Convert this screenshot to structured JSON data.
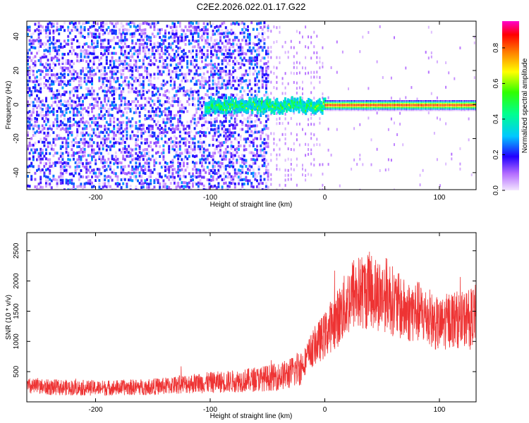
{
  "chart_data": [
    {
      "type": "heatmap",
      "title": "C2E2.2026.022.01.17.G22",
      "xlabel": "Height of straight line (km)",
      "ylabel": "Frequency (Hz)",
      "xlim": [
        -260,
        132
      ],
      "ylim": [
        -50,
        49
      ],
      "xticks": [
        -200,
        -100,
        0,
        100
      ],
      "yticks": [
        -40,
        -20,
        0,
        20,
        40
      ],
      "colorbar": {
        "label": "Normalized spectral amplitude",
        "range": [
          0,
          0.95
        ],
        "ticks": [
          0.0,
          0.2,
          0.4,
          0.6,
          0.8
        ],
        "colors": [
          "#f3e6ff",
          "#9b30ff",
          "#0000ff",
          "#00e5e5",
          "#00ff00",
          "#ffff00",
          "#ff8c00",
          "#ff0000",
          "#ff00aa"
        ]
      },
      "regions": [
        {
          "x": [
            -260,
            -50
          ],
          "description": "broadband noise",
          "amplitude": [
            0.0,
            0.3
          ]
        },
        {
          "x": [
            -105,
            0
          ],
          "frequency": 0,
          "description": "emerging carrier",
          "amplitude": [
            0.3,
            0.7
          ]
        },
        {
          "x": [
            0,
            132
          ],
          "frequency": 0,
          "description": "strong carrier line",
          "amplitude": [
            0.7,
            0.95
          ]
        }
      ]
    },
    {
      "type": "line",
      "xlabel": "Height of straight line (km)",
      "ylabel": "SNR (10 * v/v)",
      "xlim": [
        -260,
        132
      ],
      "ylim": [
        0,
        2800
      ],
      "xticks": [
        -200,
        -100,
        0,
        100
      ],
      "yticks": [
        500,
        1000,
        1500,
        2000,
        2500
      ],
      "series": [
        {
          "name": "SNR",
          "color": "#ee3333",
          "x": [
            -260,
            -240,
            -220,
            -200,
            -180,
            -160,
            -140,
            -120,
            -100,
            -80,
            -60,
            -40,
            -30,
            -20,
            -10,
            0,
            5,
            10,
            20,
            25,
            30,
            40,
            50,
            55,
            60,
            70,
            80,
            90,
            100,
            110,
            120,
            132
          ],
          "y": [
            250,
            240,
            235,
            230,
            235,
            245,
            260,
            300,
            320,
            340,
            370,
            420,
            470,
            600,
            900,
            1100,
            1250,
            1350,
            1650,
            1800,
            1800,
            1850,
            1750,
            1800,
            1650,
            1500,
            1500,
            1400,
            1250,
            1380,
            1350,
            1450
          ]
        }
      ]
    }
  ]
}
